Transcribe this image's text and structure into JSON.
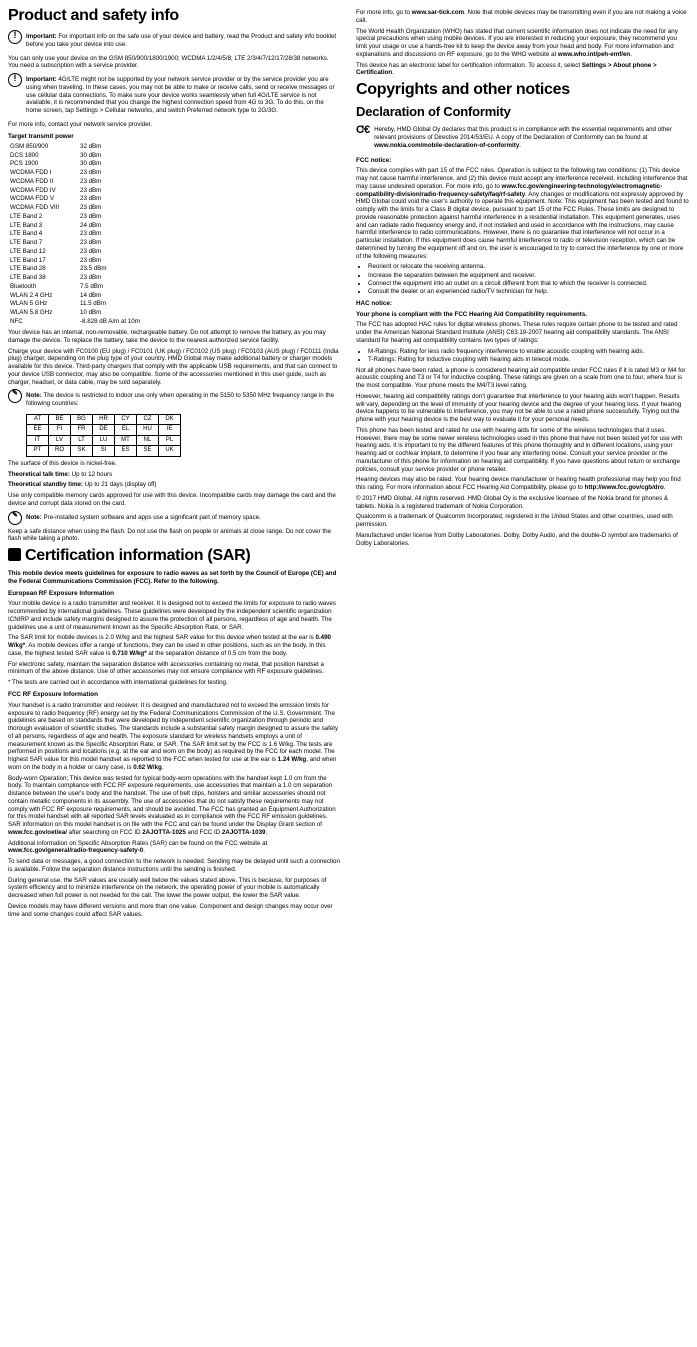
{
  "left": {
    "h1": "Product and safety info",
    "important1": {
      "lead": "Important:",
      "text": " For important info on the safe use of your device and battery, read the Product and safety info booklet before you take your device into use."
    },
    "p_gsm": "You can only use your device on the GSM 850/900/1800/1900; WCDMA 1/2/4/5/8; LTE 2/3/4/7/12/17/28/38 networks. You need a subscription with a service provider.",
    "important2": {
      "lead": "Important:",
      "text": " 4G/LTE might not be supported by your network service provider or by the service provider you are using when traveling. In these cases, you may not be able to make or receive calls, send or receive messages or use cellular data connections. To make sure your device works seamlessly when full 4G/LTE service is not available, it is recommended that you change the highest connection speed from 4G to 3G. To do this, on the home screen, tap Settings > Cellular networks, and switch Preferred network type to 2G/3G."
    },
    "p_more": "For more info, contact your network service provider.",
    "transmit_head": "Target transmit power",
    "transmit": [
      [
        "GSM 850/900",
        "32 dBm"
      ],
      [
        "DCS 1800",
        "30 dBm"
      ],
      [
        "PCS 1900",
        "30 dBm"
      ],
      [
        "WCDMA FDD I",
        "23 dBm"
      ],
      [
        "WCDMA FDD II",
        "23 dBm"
      ],
      [
        "WCDMA FDD IV",
        "23 dBm"
      ],
      [
        "WCDMA FDD V",
        "23 dBm"
      ],
      [
        "WCDMA FDD VIII",
        "23 dBm"
      ],
      [
        "LTE Band 2",
        "23 dBm"
      ],
      [
        "LTE Band 3",
        "24 dBm"
      ],
      [
        "LTE Band 4",
        "23 dBm"
      ],
      [
        "LTE Band 7",
        "23 dBm"
      ],
      [
        "LTE Band 12",
        "23 dBm"
      ],
      [
        "LTE Band 17",
        "23 dBm"
      ],
      [
        "LTE Band 28",
        "23.5 dBm"
      ],
      [
        "LTE Band 38",
        "23 dBm"
      ],
      [
        "Bluetooth",
        "7.5 dBm"
      ],
      [
        "WLAN 2.4 GHz",
        "14 dBm"
      ],
      [
        "WLAN 5 GHz",
        "11.5 dBm"
      ],
      [
        "WLAN 5.8 GHz",
        "10 dBm"
      ],
      [
        "NFC",
        "-8.828 dB  A/m at 10m"
      ]
    ],
    "p_battery": "Your device has an internal, non-removable, rechargeable battery. Do not attempt to remove the battery, as you may damage the device. To replace the battery, take the device to the nearest authorized service facility.",
    "p_charge": "Charge your device with FC0100 (EU plug) / FC0101 (UK plug) / FC0102 (US plug) / FC0103 (AUS plug) / FC0111 (India plug) charger, depending on the plug type of your country. HMD Global may make additional battery or charger models available for this device. Third-party chargers that comply with the applicable USB requirements, and that can connect to your device USB connector, may also be compatible. Some of the accessories mentioned in this user guide, such as charger, headset, or data cable, may be sold separately.",
    "note1": {
      "lead": "Note:",
      "text": " The device is restricted to indoor use only when operating in the 5150 to 5350 MHz frequency range in the following countries:"
    },
    "countries": [
      [
        "AT",
        "BE",
        "BG",
        "HR",
        "CY",
        "CZ",
        "DK"
      ],
      [
        "EE",
        "FI",
        "FR",
        "DE",
        "EL",
        "HU",
        "IE"
      ],
      [
        "IT",
        "LV",
        "LT",
        "LU",
        "MT",
        "NL",
        "PL"
      ],
      [
        "PT",
        "RO",
        "SK",
        "SI",
        "ES",
        "SE",
        "UK"
      ]
    ],
    "p_nickel": "The surface of this device is nickel-free.",
    "talktime_lead": "Theoretical talk time:",
    "talktime_val": " Up to 12 hours",
    "standby_lead": "Theoretical standby time:",
    "standby_val": " Up to 21 days (display off)",
    "p_cards": "Use only compatible memory cards approved for use with this device. Incompatible cards may damage the card and the device and corrupt data stored on the card.",
    "note2": {
      "lead": "Note:",
      "text": " Pre-installed system software and apps use a significant part of memory space."
    },
    "p_flash": "Keep a safe distance when using the flash. Do not use the flash on people or animals at close range. Do not cover the flash while taking a photo.",
    "h1_sar": "Certification information (SAR)",
    "sar_sub": "This mobile device meets guidelines for exposure to radio waves as set forth by the Council of Europe (CE) and the Federal Communications Commission (FCC). Refer to the following.",
    "eu_head": "European RF Exposure Information",
    "eu_p1": "Your mobile device is a radio transmitter and receiver. It is designed not to exceed the limits for exposure to radio waves recommended by international guidelines. These guidelines were developed by the independent scientific organization ICNIRP and include safety margins designed to assure the protection of all persons, regardless of age and health. The guidelines use a unit of measurement known as the Specific Absorption Rate, or SAR.",
    "eu_p2a": "The SAR limit for mobile devices is 2.0 W/kg and the highest SAR value for this device when tested at the ear is ",
    "eu_p2b": "0.490 W/kg*",
    "eu_p2c": ". As mobile devices offer a range of functions, they can be used in other positions, such as on the body. In this case, the highest tested SAR value is ",
    "eu_p2d": "0.710 W/kg*",
    "eu_p2e": " at the separation distance of 0.5 cm from the body.",
    "eu_p3": "For electronic safety, maintain the separation distance with accessories containing no metal, that position handset a minimum of the above distance. Use of other accessories may not ensure compliance with RF exposure guidelines.",
    "eu_p4": "* The tests are carried out in accordance with international guidelines for testing.",
    "fcc_head": "FCC RF Exposure Information",
    "fcc_p1a": "Your handset is a radio transmitter and receiver. It is designed and manufactured not to exceed the emission limits for exposure to radio frequency (RF) energy set by the Federal Communications Commission of the U.S. Government. The guidelines are based on standards that were developed by independent scientific organization through periodic and thorough evaluation of scientific studies. The standards include a substantial safety margin designed to assure the safety of all persons, regardless of age and health. The exposure standard for wireless handsets employs a unit of measurement known as the Specific Absorption Rate, or SAR. The SAR limit set by the FCC is 1.6 W/kg. The tests are performed in positions and locations (e.g. at the ear and worn on the body) as required by the FCC for each model. The highest SAR value for this model handset as reported to the FCC when tested for use at the ear is ",
    "fcc_p1b": "1.24 W/kg",
    "fcc_p1c": ", and when worn on the body in a holder or carry case, is ",
    "fcc_p1d": "0.62 W/kg",
    "fcc_p1e": ".",
    "fcc_p2a": "Body-worn Operation; This device was tested for typical body-worn operations with the handset kept 1.0 cm from the body. To maintain compliance with FCC RF exposure requirements, use accessories that maintain a 1.0 cm separation distance between the user's body and the handset. The use of belt clips, holsters and similar accessories should not contain metallic components in its assembly. The use of accessories that do not satisfy these requirements may not comply with FCC RF exposure requirements, and should be avoided. The FCC has granted an Equipment Authorization for this model handset with all reported SAR levels evaluated as in compliance with the FCC RF emission guidelines. SAR information on this model handset is on file with the FCC and can be found under the Display Grant section of ",
    "fcc_p2b": "www.fcc.gov/oet/ea/",
    "fcc_p2c": " after searching on FCC ID ",
    "fcc_p2d": "2AJOTTA-1025",
    "fcc_p2e": " and FCC ID ",
    "fcc_p2f": "2AJOTTA-1039",
    "fcc_p2g": ".",
    "fcc_p3a": "Additional information on Specific Absorption Rates (SAR) can be found on the FCC website at ",
    "fcc_p3b": "www.fcc.gov/general/radio-frequency-safety-0",
    "fcc_p3c": ".",
    "fcc_p4": "To send data or messages, a good connection to the network is needed. Sending may be delayed until such a connection is available. Follow the separation distance instructions until the sending is finished.",
    "fcc_p5": "During general use, the SAR values are usually well below the values stated above. This is because, for purposes of system efficiency and to minimize interference on the network, the operating power of your mobile is automatically decreased when full power is not needed for the call. The lower the power output, the lower the SAR value.",
    "fcc_p6": "Device models may have different versions and more than one value. Component and design changes may occur over time and some changes could affect SAR values."
  },
  "right": {
    "top_p1a": "For more info, go to ",
    "top_p1b": "www.sar-tick.com",
    "top_p1c": ". Note that mobile devices may be transmitting even if you are not making a voice call.",
    "top_p2a": "The World Health Organization (WHO) has stated that current scientific information does not indicate the need for any special precautions when using mobile devices. If you are interested in reducing your exposure, they recommend you limit your usage or use a hands-free kit to keep the device away from your head and body. For more information and explanations and discussions on RF exposure, go to the WHO website at ",
    "top_p2b": "www.who.int/peh-emf/en",
    "top_p2c": ".",
    "top_p3a": "This device has an electronic label for certification information. To access it, select ",
    "top_p3b": "Settings > About phone > Certification",
    "top_p3c": ".",
    "h1": "Copyrights and other notices",
    "h2": "Declaration of Conformity",
    "ce": {
      "text": "Hereby, HMD Global Oy declares that this product is in compliance with the essential requirements and other relevant provisions of Directive 2014/53/EU. A copy of the Declaration of Conformity can be found at ",
      "link": "www.nokia.com/mobile-declaration-of-conformity",
      "end": "."
    },
    "fcc_head": "FCC notice:",
    "fcc_p1a": "This device complies with part 15 of the FCC rules. Operation is subject to the following two conditions: (1) This device may not cause harmful interference, and (2) this device must accept any interference received, including interference that may cause undesired operation. For more info, go to ",
    "fcc_p1b": "www.fcc.gov/engineering-technology/electromagnetic-compatibility-division/radio-frequency-safety/faq/rf-safety",
    "fcc_p1c": ". Any changes or modifications not expressly approved by HMD Global could void the user's authority to operate this equipment. Note: This equipment has been tested and found to comply with the limits for a Class B digital device, pursuant to part 15 of the FCC Rules. These limits are designed to provide reasonable protection against harmful interference in a residential installation. This equipment generates, uses and can radiate radio frequency energy and, if not installed and used in accordance with the instructions, may cause harmful interference to radio communications. However, there is no guarantee that interference will not occur in a particular installation. If this equipment does cause harmful interference to radio or television reception, which can be determined by turning the equipment off and on, the user is encouraged to try to correct the interference by one or more of the following measures:",
    "bullets": [
      "Reorient or relocate the receiving antenna.",
      "Increase the separation between the equipment and receiver.",
      "Connect the equipment into an outlet on a circuit different from that to which the receiver is connected.",
      "Consult the dealer or an experienced radio/TV technician for help."
    ],
    "hac_head": "HAC notice:",
    "hac_bold": "Your phone is compliant with the FCC Hearing Aid Compatibility requirements.",
    "hac_p1": "The FCC has adopted HAC rules for digital wireless phones. These rules require certain phone to be tested and rated under the American National Standard Institute (ANSI) C63.19-2007 hearing aid compatibility standards. The ANSI standard for hearing aid compatibility contains two types of ratings:",
    "hac_bullets": [
      "M-Ratings: Rating for less radio frequency interference to enable acoustic coupling with hearing aids.",
      "T-Ratings: Rating for inductive coupling with hearing aids in telecoil mode."
    ],
    "hac_p2": "Not all phones have been rated, a phone is considered hearing aid compatible under FCC rules if it is rated M3 or M4 for acoustic coupling and T3 or T4 for inductive coupling. These ratings are given on a scale from one to four, where four is the most compatible. Your phone meets the M4/T3 level rating.",
    "hac_p3": "However, hearing aid compatibility ratings don't guarantee that interference to your hearing aids won't happen. Results will vary, depending on the level of immunity of your hearing device and the degree of your hearing loss. If your hearing device happens to be vulnerable to interference, you may not be able to use a rated phone successfully. Trying out the phone with your hearing device is the best way to evaluate it for your personal needs.",
    "hac_p4": "This phone has been tested and rated for use with hearing aids for some of the wireless technologies that it uses. However, there may be some newer wireless technologies used in this phone that have not been tested yet for use with hearing aids. It is important to try the different features of this phone thoroughly and in different locations, using your hearing aid or cochlear implant, to determine if you hear any interfering noise. Consult your service provider or the manufacturer of this phone for information on hearing aid compatibility. If you have questions about return or exchange policies, consult your service provider or phone retailer.",
    "hac_p5a": "Hearing devices may also be rated. Your hearing device manufacturer or hearing health professional may help you find this rating. For more information about FCC Hearing Aid Compatibility, please go to ",
    "hac_p5b": "http://www.fcc.gov/cgb/dro",
    "hac_p5c": ".",
    "copy1": "© 2017 HMD Global. All rights reserved. HMD Global Oy is the exclusive licensee of the Nokia brand for phones & tablets. Nokia is a registered trademark of Nokia Corporation.",
    "copy2": "Qualcomm is a trademark of Qualcomm Incorporated, registered in the United States and other countries, used with permission.",
    "copy3": "Manufactured under license from Dolby Laboratories. Dolby, Dolby Audio, and the double-D symbol are trademarks of Dolby Laboratories."
  }
}
